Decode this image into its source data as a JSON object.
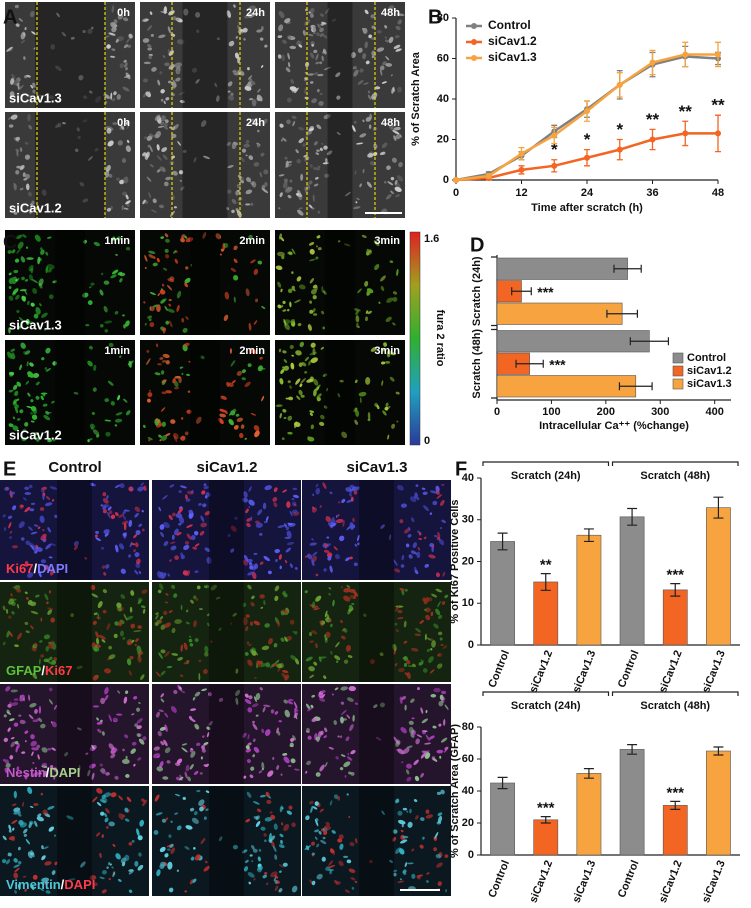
{
  "panels": [
    "A",
    "B",
    "C",
    "D",
    "E",
    "F"
  ],
  "images": {
    "A": {
      "columns": [
        "0h",
        "24h",
        "48h"
      ],
      "rows": [
        "siCav1.3",
        "siCav1.2"
      ]
    },
    "C": {
      "columns": [
        "1min",
        "2min",
        "3min"
      ],
      "rows": [
        "siCav1.3",
        "siCav1.2"
      ],
      "colorbar": {
        "max": 1.6,
        "min": 0,
        "label": "fura 2 ratio"
      }
    },
    "E": {
      "columns": [
        "Control",
        "siCav1.2",
        "siCav1.3"
      ],
      "rows": [
        [
          {
            "text": "Ki67",
            "color": "#ff3b4b"
          },
          {
            "text": "/",
            "color": "#ffffff"
          },
          {
            "text": "DAPI",
            "color": "#7b7bff"
          }
        ],
        [
          {
            "text": "GFAP",
            "color": "#5fc03a"
          },
          {
            "text": "/",
            "color": "#ffffff"
          },
          {
            "text": "Ki67",
            "color": "#ff3b4b"
          }
        ],
        [
          {
            "text": "Nestin",
            "color": "#c35ac8"
          },
          {
            "text": "/",
            "color": "#ffffff"
          },
          {
            "text": "DAPI",
            "color": "#a8d08a"
          }
        ],
        [
          {
            "text": "Vimentin",
            "color": "#4cc6d6"
          },
          {
            "text": "/",
            "color": "#ffffff"
          },
          {
            "text": "DAPI",
            "color": "#ff3b4b"
          }
        ]
      ]
    }
  },
  "chart_data": [
    {
      "type": "line",
      "x": [
        0,
        6,
        12,
        18,
        24,
        30,
        36,
        42,
        48
      ],
      "xlim": [
        0,
        48
      ],
      "xticks": [
        0,
        12,
        24,
        36,
        48
      ],
      "ylim": [
        0,
        80
      ],
      "yticks": [
        0,
        20,
        40,
        60,
        80
      ],
      "xlabel": "Time after scratch (h)",
      "ylabel": "% of Scratch Area",
      "legend": "upper left",
      "series": [
        {
          "name": "Control",
          "color": "#808080",
          "values": [
            0,
            3,
            12,
            24,
            35,
            47,
            57,
            61,
            60
          ],
          "errors": [
            0.5,
            1,
            2,
            3,
            4,
            7,
            6,
            5,
            3
          ]
        },
        {
          "name": "siCav1.2",
          "color": "#f26522",
          "values": [
            0,
            1,
            5,
            7,
            11,
            15,
            20,
            23,
            23
          ],
          "errors": [
            0.5,
            1,
            2,
            3,
            4,
            5,
            5,
            6,
            9
          ],
          "annotations": [
            null,
            null,
            null,
            "*",
            "*",
            "*",
            "**",
            "**",
            "**"
          ]
        },
        {
          "name": "siCav1.3",
          "color": "#f7a440",
          "values": [
            0,
            2,
            13,
            22,
            34,
            47,
            58,
            62,
            62
          ],
          "errors": [
            0.5,
            1,
            3,
            4,
            5,
            6,
            6,
            6,
            6
          ]
        }
      ]
    },
    {
      "type": "bar",
      "horizontal": true,
      "categories": [
        "Scratch (24h)",
        "Scratch (48h)"
      ],
      "xlim": [
        0,
        430
      ],
      "xticks": [
        0,
        100,
        200,
        300,
        400
      ],
      "xlabel": "Intracellular Ca⁺⁺ (%change)",
      "legend": "lower right",
      "series": [
        {
          "name": "Control",
          "color": "#8c8c8c",
          "values": [
            240,
            280
          ],
          "errors": [
            25,
            35
          ]
        },
        {
          "name": "siCav1.2",
          "color": "#f26522",
          "values": [
            45,
            60
          ],
          "errors": [
            18,
            25
          ],
          "annotations": [
            "***",
            "***"
          ]
        },
        {
          "name": "siCav1.3",
          "color": "#f7a440",
          "values": [
            230,
            255
          ],
          "errors": [
            28,
            30
          ]
        }
      ]
    },
    {
      "type": "bar",
      "categories": [
        "Control",
        "siCav1.2",
        "siCav1.3",
        "Control",
        "siCav1.2",
        "siCav1.3"
      ],
      "groups": [
        "Scratch (24h)",
        "Scratch (48h)"
      ],
      "values": [
        24.8,
        15.1,
        26.3,
        30.7,
        13.2,
        32.9
      ],
      "errors": [
        2,
        2,
        1.5,
        2,
        1.5,
        2.5
      ],
      "colors": [
        "#8c8c8c",
        "#f26522",
        "#f7a440",
        "#8c8c8c",
        "#f26522",
        "#f7a440"
      ],
      "annotations": [
        null,
        "**",
        null,
        null,
        "***",
        null
      ],
      "ylim": [
        0,
        40
      ],
      "yticks": [
        0,
        10,
        20,
        30,
        40
      ],
      "ylabel": "% of Ki67 Positive Cells"
    },
    {
      "type": "bar",
      "categories": [
        "Control",
        "siCav1.2",
        "siCav1.3",
        "Control",
        "siCav1.2",
        "siCav1.3"
      ],
      "groups": [
        "Scratch (24h)",
        "Scratch (48h)"
      ],
      "values": [
        45,
        22,
        51,
        66,
        31,
        65
      ],
      "errors": [
        3.5,
        2,
        3,
        3,
        2.5,
        2.5
      ],
      "colors": [
        "#8c8c8c",
        "#f26522",
        "#f7a440",
        "#8c8c8c",
        "#f26522",
        "#f7a440"
      ],
      "annotations": [
        null,
        "***",
        null,
        null,
        "***",
        null
      ],
      "ylim": [
        0,
        80
      ],
      "yticks": [
        0,
        20,
        40,
        60,
        80
      ],
      "ylabel": "% of Scratch Area (GFAP)"
    }
  ]
}
